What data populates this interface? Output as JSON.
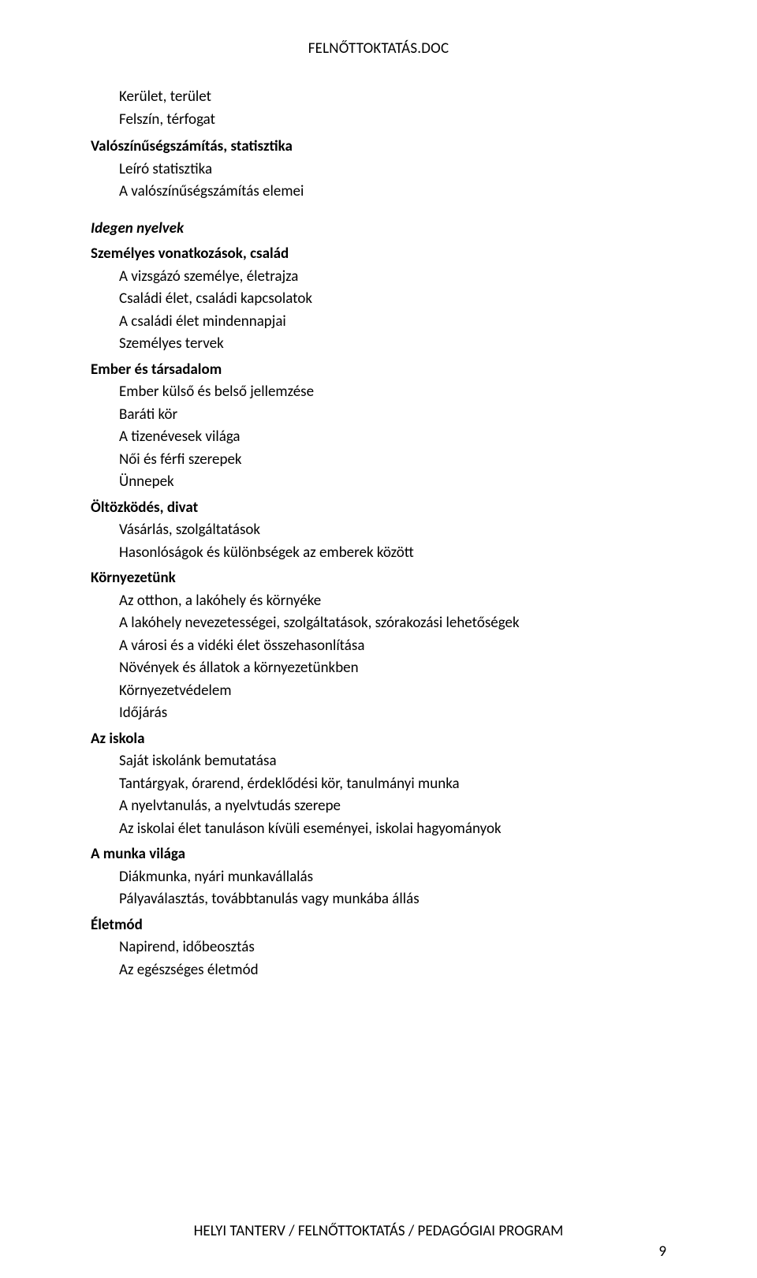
{
  "header": {
    "title": "FELNŐTTOKTATÁS.DOC"
  },
  "sections": [
    {
      "type": "item",
      "text": "Kerület, terület"
    },
    {
      "type": "item",
      "text": "Felszín, térfogat"
    },
    {
      "type": "heading",
      "text": "Valószínűségszámítás, statisztika"
    },
    {
      "type": "item",
      "text": "Leíró statisztika"
    },
    {
      "type": "item",
      "text": "A valószínűségszámítás elemei"
    },
    {
      "type": "italic-heading",
      "text": "Idegen nyelvek"
    },
    {
      "type": "heading-tight",
      "text": "Személyes vonatkozások, család"
    },
    {
      "type": "item",
      "text": "A vizsgázó személye, életrajza"
    },
    {
      "type": "item",
      "text": "Családi élet, családi kapcsolatok"
    },
    {
      "type": "item",
      "text": "A családi élet mindennapjai"
    },
    {
      "type": "item",
      "text": "Személyes tervek"
    },
    {
      "type": "heading-tight",
      "text": "Ember és társadalom"
    },
    {
      "type": "item",
      "text": "Ember külső és belső jellemzése"
    },
    {
      "type": "item",
      "text": "Baráti kör"
    },
    {
      "type": "item",
      "text": "A tizenévesek világa"
    },
    {
      "type": "item",
      "text": "Női és férfi szerepek"
    },
    {
      "type": "item",
      "text": "Ünnepek"
    },
    {
      "type": "heading-tight",
      "text": "Öltözködés, divat"
    },
    {
      "type": "item",
      "text": "Vásárlás, szolgáltatások"
    },
    {
      "type": "item",
      "text": "Hasonlóságok és különbségek az emberek között"
    },
    {
      "type": "heading-tight",
      "text": "Környezetünk"
    },
    {
      "type": "item",
      "text": "Az otthon, a lakóhely és környéke"
    },
    {
      "type": "item",
      "text": "A lakóhely nevezetességei, szolgáltatások, szórakozási lehetőségek"
    },
    {
      "type": "item",
      "text": "A városi és a vidéki élet összehasonlítása"
    },
    {
      "type": "item",
      "text": "Növények és állatok a környezetünkben"
    },
    {
      "type": "item",
      "text": "Környezetvédelem"
    },
    {
      "type": "item",
      "text": "Időjárás"
    },
    {
      "type": "heading-tight",
      "text": "Az iskola"
    },
    {
      "type": "item",
      "text": "Saját iskolánk bemutatása"
    },
    {
      "type": "item",
      "text": "Tantárgyak, órarend, érdeklődési kör, tanulmányi munka"
    },
    {
      "type": "item",
      "text": "A nyelvtanulás, a nyelvtudás szerepe"
    },
    {
      "type": "item",
      "text": "Az iskolai élet tanuláson kívüli eseményei, iskolai hagyományok"
    },
    {
      "type": "heading-tight",
      "text": "A munka világa"
    },
    {
      "type": "item",
      "text": "Diákmunka, nyári munkavállalás"
    },
    {
      "type": "item",
      "text": "Pályaválasztás, továbbtanulás vagy munkába állás"
    },
    {
      "type": "heading-tight",
      "text": "Életmód"
    },
    {
      "type": "item",
      "text": "Napirend, időbeosztás"
    },
    {
      "type": "item",
      "text": "Az egészséges életmód"
    }
  ],
  "footer": {
    "center": "HELYI TANTERV / FELNŐTTOKTATÁS / PEDAGÓGIAI PROGRAM",
    "page": "9"
  }
}
